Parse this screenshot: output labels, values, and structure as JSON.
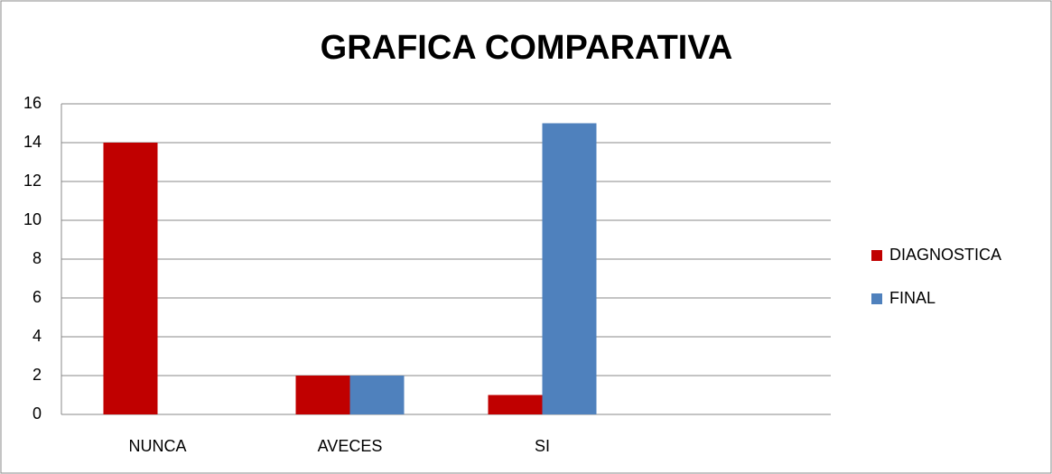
{
  "chart_data": {
    "type": "bar",
    "title": "GRAFICA COMPARATIVA",
    "categories": [
      "NUNCA",
      "AVECES",
      "SI",
      null
    ],
    "series": [
      {
        "name": "DIAGNOSTICA",
        "color": "#c00000",
        "values": [
          14,
          2,
          1,
          null
        ]
      },
      {
        "name": "FINAL",
        "color": "#4f81bd",
        "values": [
          0,
          2,
          15,
          null
        ]
      }
    ],
    "ylim": [
      0,
      16
    ],
    "yticks": [
      0,
      2,
      4,
      6,
      8,
      10,
      12,
      14,
      16
    ],
    "grid": true,
    "legend": "right"
  }
}
